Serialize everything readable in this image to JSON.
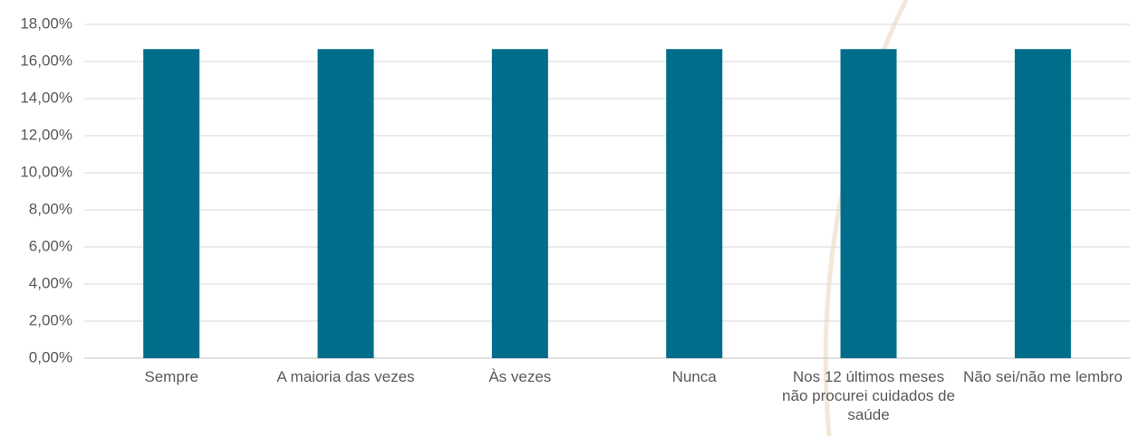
{
  "chart_data": {
    "type": "bar",
    "categories": [
      "Sempre",
      "A maioria das vezes",
      "Às vezes",
      "Nunca",
      "Nos 12 últimos meses não procurei cuidados de saúde",
      "Não sei/não me lembro"
    ],
    "values": [
      16.67,
      16.67,
      16.67,
      16.67,
      16.67,
      16.67
    ],
    "color": "#006e8a",
    "ylim": [
      0,
      18
    ],
    "yticks": [
      {
        "value": 0,
        "label": "0,00%"
      },
      {
        "value": 2,
        "label": "2,00%"
      },
      {
        "value": 4,
        "label": "4,00%"
      },
      {
        "value": 6,
        "label": "6,00%"
      },
      {
        "value": 8,
        "label": "8,00%"
      },
      {
        "value": 10,
        "label": "10,00%"
      },
      {
        "value": 12,
        "label": "12,00%"
      },
      {
        "value": 14,
        "label": "14,00%"
      },
      {
        "value": 16,
        "label": "16,00%"
      },
      {
        "value": 18,
        "label": "18,00%"
      }
    ],
    "grid": true
  }
}
